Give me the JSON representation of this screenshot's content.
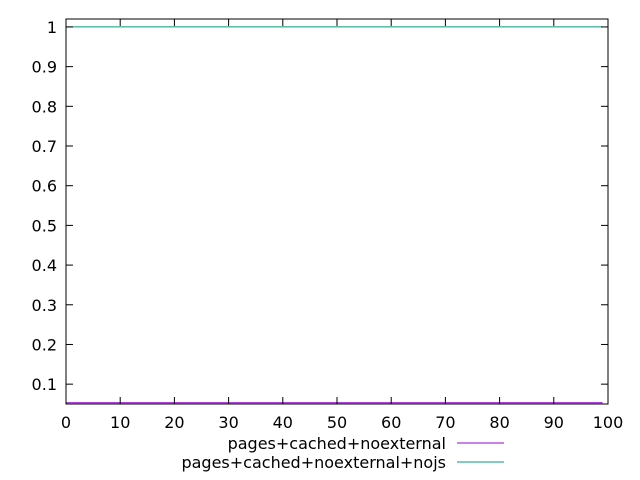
{
  "chart_data": {
    "type": "line",
    "title": "",
    "xlabel": "",
    "ylabel": "",
    "xlim": [
      0,
      100
    ],
    "ylim": [
      0.05,
      1.02
    ],
    "x_ticks": [
      0,
      10,
      20,
      30,
      40,
      50,
      60,
      70,
      80,
      90,
      100
    ],
    "y_ticks": [
      0.1,
      0.2,
      0.3,
      0.4,
      0.5,
      0.6,
      0.7,
      0.8,
      0.9,
      1
    ],
    "x_tick_labels": [
      "0",
      "10",
      "20",
      "30",
      "40",
      "50",
      "60",
      "70",
      "80",
      "90",
      "100"
    ],
    "y_tick_labels": [
      "0.1",
      "0.2",
      "0.3",
      "0.4",
      "0.5",
      "0.6",
      "0.7",
      "0.8",
      "0.9",
      "1"
    ],
    "grid": false,
    "legend_position": "bottom-center",
    "series": [
      {
        "name": "pages+cached+noexternal",
        "color": "#9400d3",
        "x": [
          0,
          99
        ],
        "values": [
          0.053,
          0.053
        ]
      },
      {
        "name": "pages+cached+noexternal+nojs",
        "color": "#009e73",
        "x": [
          0,
          99
        ],
        "values": [
          1.0,
          1.0
        ]
      }
    ]
  }
}
